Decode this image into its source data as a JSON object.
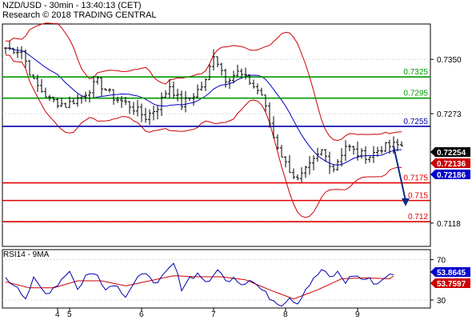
{
  "header": {
    "line1": "NZD/USD - 30min - 13:40:13 (CET)",
    "line2": "Research © 2018 TRADING CENTRAL"
  },
  "colors": {
    "support": "#e00000",
    "resistance": "#009900",
    "pivot": "#0000aa",
    "price": "#000000",
    "bollinger": "#cc0000",
    "ma": "#0000cc",
    "rsi": "#0000aa",
    "rsi_ma": "#cc0000",
    "arrow": "#0a2a80"
  },
  "chart_data": [
    {
      "type": "ohlc",
      "title": "",
      "ylim": [
        0.7085,
        0.74
      ],
      "ytick_labels": [
        "0.7350",
        "0.7273",
        "0.7118"
      ],
      "yticks": [
        0.735,
        0.7273,
        0.7118
      ],
      "x_labels": [
        "4",
        "5",
        "6",
        "7",
        "8",
        "9"
      ],
      "x_label_bars": [
        13,
        16,
        34,
        52,
        70,
        88
      ],
      "bar_count": 100,
      "close_waypoints": [
        [
          0,
          0.7366
        ],
        [
          4,
          0.7362
        ],
        [
          7,
          0.7318
        ],
        [
          11,
          0.7293
        ],
        [
          15,
          0.7285
        ],
        [
          19,
          0.7298
        ],
        [
          23,
          0.7318
        ],
        [
          27,
          0.7296
        ],
        [
          31,
          0.7285
        ],
        [
          35,
          0.7268
        ],
        [
          38,
          0.7283
        ],
        [
          41,
          0.7313
        ],
        [
          44,
          0.7286
        ],
        [
          47,
          0.73
        ],
        [
          50,
          0.7318
        ],
        [
          52,
          0.7358
        ],
        [
          55,
          0.7323
        ],
        [
          58,
          0.7331
        ],
        [
          61,
          0.7318
        ],
        [
          64,
          0.73
        ],
        [
          67,
          0.724
        ],
        [
          70,
          0.7202
        ],
        [
          73,
          0.7178
        ],
        [
          76,
          0.7198
        ],
        [
          79,
          0.722
        ],
        [
          82,
          0.7196
        ],
        [
          85,
          0.7228
        ],
        [
          88,
          0.7216
        ],
        [
          91,
          0.7213
        ],
        [
          94,
          0.7225
        ],
        [
          97,
          0.7228
        ]
      ],
      "levels": [
        {
          "value": 0.7325,
          "label": "0.7325",
          "kind": "resistance"
        },
        {
          "value": 0.7295,
          "label": "0.7295",
          "kind": "resistance"
        },
        {
          "value": 0.7255,
          "label": "0.7255",
          "kind": "pivot"
        },
        {
          "value": 0.7175,
          "label": "0.7175",
          "kind": "support"
        },
        {
          "value": 0.715,
          "label": "0.715",
          "kind": "support"
        },
        {
          "value": 0.712,
          "label": "0.712",
          "kind": "support"
        }
      ],
      "tags": [
        {
          "value": 0.72254,
          "label": "0.72254",
          "color": "#000000"
        },
        {
          "value": 0.72136,
          "label": "0.72136",
          "color": "#cc0000"
        },
        {
          "value": 0.72186,
          "label": "0.72186",
          "color": "#0000cc"
        }
      ],
      "arrow": {
        "from": [
          97,
          0.7227
        ],
        "to": [
          100,
          0.7143
        ]
      }
    },
    {
      "type": "line",
      "title": "RSI14 - 9MA",
      "ylim": [
        22,
        80
      ],
      "ytick_labels": [
        "70",
        "30"
      ],
      "yticks": [
        70,
        30
      ],
      "series": [
        {
          "name": "RSI14",
          "waypoints": [
            [
              0,
              50
            ],
            [
              3,
              44
            ],
            [
              5,
              32
            ],
            [
              7,
              50
            ],
            [
              10,
              36
            ],
            [
              13,
              46
            ],
            [
              16,
              60
            ],
            [
              18,
              40
            ],
            [
              20,
              54
            ],
            [
              23,
              57
            ],
            [
              25,
              40
            ],
            [
              27,
              47
            ],
            [
              30,
              35
            ],
            [
              33,
              52
            ],
            [
              36,
              55
            ],
            [
              38,
              45
            ],
            [
              40,
              56
            ],
            [
              42,
              66
            ],
            [
              44,
              42
            ],
            [
              46,
              52
            ],
            [
              48,
              56
            ],
            [
              51,
              46
            ],
            [
              53,
              62
            ],
            [
              55,
              48
            ],
            [
              57,
              54
            ],
            [
              59,
              46
            ],
            [
              61,
              51
            ],
            [
              63,
              44
            ],
            [
              65,
              36
            ],
            [
              67,
              30
            ],
            [
              69,
              26
            ],
            [
              71,
              33
            ],
            [
              73,
              27
            ],
            [
              75,
              41
            ],
            [
              77,
              50
            ],
            [
              79,
              60
            ],
            [
              81,
              52
            ],
            [
              83,
              57
            ],
            [
              85,
              48
            ],
            [
              87,
              55
            ],
            [
              89,
              51
            ],
            [
              91,
              50
            ],
            [
              93,
              46
            ],
            [
              95,
              54
            ],
            [
              97,
              54
            ]
          ]
        },
        {
          "name": "9MA",
          "waypoints": [
            [
              0,
              48
            ],
            [
              6,
              42
            ],
            [
              12,
              42
            ],
            [
              18,
              49
            ],
            [
              24,
              49
            ],
            [
              30,
              44
            ],
            [
              36,
              49
            ],
            [
              42,
              54
            ],
            [
              48,
              53
            ],
            [
              54,
              53
            ],
            [
              60,
              50
            ],
            [
              66,
              40
            ],
            [
              72,
              31
            ],
            [
              78,
              40
            ],
            [
              84,
              51
            ],
            [
              90,
              52
            ],
            [
              96,
              51
            ],
            [
              97,
              53.8
            ]
          ]
        }
      ],
      "tags": [
        {
          "value": 53.8645,
          "label": "53.8645",
          "color": "#0000cc"
        },
        {
          "value": 53.7597,
          "label": "53.7597",
          "color": "#cc0000"
        }
      ]
    }
  ]
}
